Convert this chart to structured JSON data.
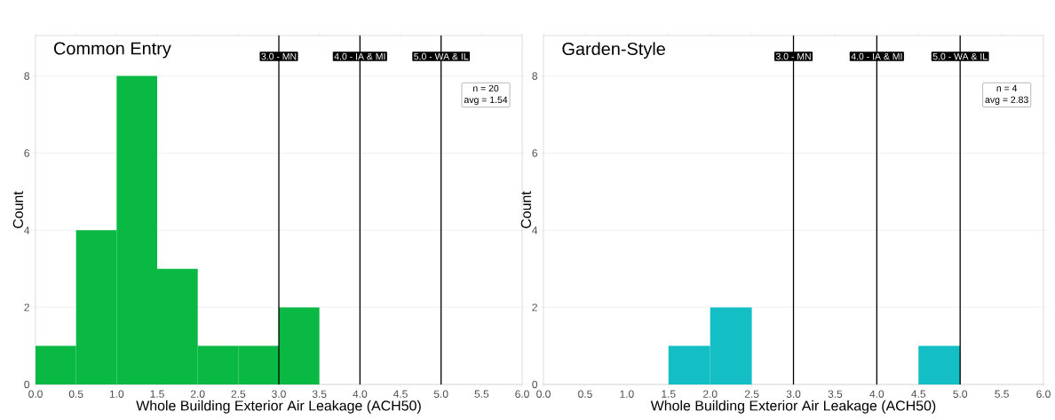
{
  "chart_data": [
    {
      "type": "histogram",
      "title": "Common Entry",
      "xlabel": "Whole Building Exterior Air Leakage (ACH50)",
      "ylabel": "Count",
      "bins": [
        0,
        0.5,
        1,
        1.5,
        2,
        2.5,
        3,
        3.5
      ],
      "values": [
        1,
        4,
        8,
        3,
        1,
        1,
        2
      ],
      "color": "#09b944",
      "xlim": [
        0,
        6
      ],
      "ylim": [
        0,
        9.05
      ],
      "xticks": [
        {
          "value": 0,
          "label": "0.0"
        },
        {
          "value": 0.5,
          "label": "0.5"
        },
        {
          "value": 1,
          "label": "1.0"
        },
        {
          "value": 1.5,
          "label": "1.5"
        },
        {
          "value": 2,
          "label": "2.0"
        },
        {
          "value": 2.5,
          "label": "2.5"
        },
        {
          "value": 3,
          "label": "3.0"
        },
        {
          "value": 3.5,
          "label": "3.5"
        },
        {
          "value": 4,
          "label": "4.0"
        },
        {
          "value": 4.5,
          "label": "4.5"
        },
        {
          "value": 5,
          "label": "5.0"
        },
        {
          "value": 5.5,
          "label": "5.5"
        },
        {
          "value": 6,
          "label": "6.0"
        }
      ],
      "yticks": [
        0,
        2,
        4,
        6,
        8
      ],
      "grid": true,
      "ref_lines": [
        {
          "axis": "x",
          "value": 3,
          "label": "3.0 - MN"
        },
        {
          "axis": "x",
          "value": 4,
          "label": "4.0 - IA & MI"
        },
        {
          "axis": "x",
          "value": 5,
          "label": "5.0 - WA & IL"
        }
      ],
      "annotations": [
        "n = 20",
        "avg = 1.54"
      ]
    },
    {
      "type": "histogram",
      "title": "Garden-Style",
      "xlabel": "Whole Building Exterior Air Leakage (ACH50)",
      "ylabel": "Count",
      "bins": [
        1.5,
        2,
        2.5,
        3,
        3.5,
        4,
        4.5,
        5
      ],
      "values": [
        1,
        2,
        0,
        0,
        0,
        0,
        1
      ],
      "color": "#13bfc4",
      "xlim": [
        0,
        6
      ],
      "ylim": [
        0,
        9.05
      ],
      "xticks": [
        {
          "value": 0,
          "label": "0.0"
        },
        {
          "value": 0.5,
          "label": "0.5"
        },
        {
          "value": 1,
          "label": "1.0"
        },
        {
          "value": 1.5,
          "label": "1.5"
        },
        {
          "value": 2,
          "label": "2.0"
        },
        {
          "value": 2.5,
          "label": "2.5"
        },
        {
          "value": 3,
          "label": "3.0"
        },
        {
          "value": 3.5,
          "label": "3.5"
        },
        {
          "value": 4,
          "label": "4.0"
        },
        {
          "value": 4.5,
          "label": "4.5"
        },
        {
          "value": 5,
          "label": "5.0"
        },
        {
          "value": 5.5,
          "label": "5.5"
        },
        {
          "value": 6,
          "label": "6.0"
        }
      ],
      "yticks": [
        0,
        2,
        4,
        6,
        8
      ],
      "grid": true,
      "ref_lines": [
        {
          "axis": "x",
          "value": 3,
          "label": "3.0 - MN"
        },
        {
          "axis": "x",
          "value": 4,
          "label": "4.0 - IA & MI"
        },
        {
          "axis": "x",
          "value": 5,
          "label": "5.0 - WA & IL"
        }
      ],
      "annotations": [
        "n = 4",
        "avg = 2.83"
      ]
    }
  ]
}
